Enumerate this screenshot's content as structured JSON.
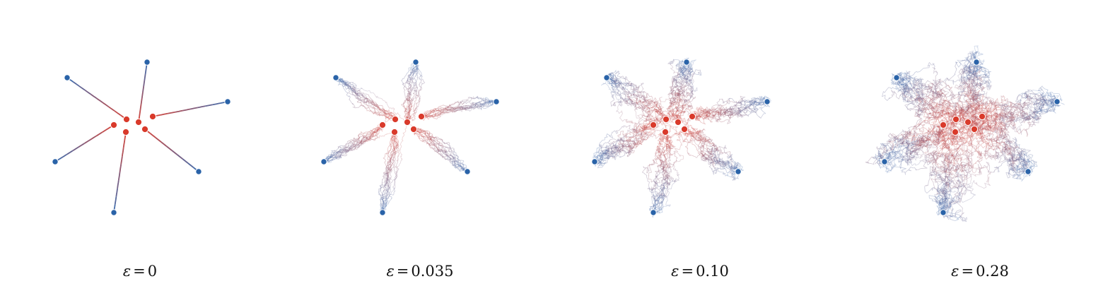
{
  "figure": {
    "colors": {
      "start": "#d93a2b",
      "end": "#2a63a8",
      "path_start": "#d8473b",
      "path_end": "#3f6fb0",
      "background": "#ffffff"
    },
    "panels": [
      {
        "symbol": "ε",
        "value": "0",
        "epsilon": 0,
        "noise": 0.0,
        "seed": 11
      },
      {
        "symbol": "ε",
        "value": "0.035",
        "epsilon": 0.035,
        "noise": 1.0,
        "seed": 23
      },
      {
        "symbol": "ε",
        "value": "0.10",
        "epsilon": 0.1,
        "noise": 1.9,
        "seed": 37
      },
      {
        "symbol": "ε",
        "value": "0.28",
        "epsilon": 0.28,
        "noise": 3.1,
        "seed": 53
      }
    ]
  }
}
